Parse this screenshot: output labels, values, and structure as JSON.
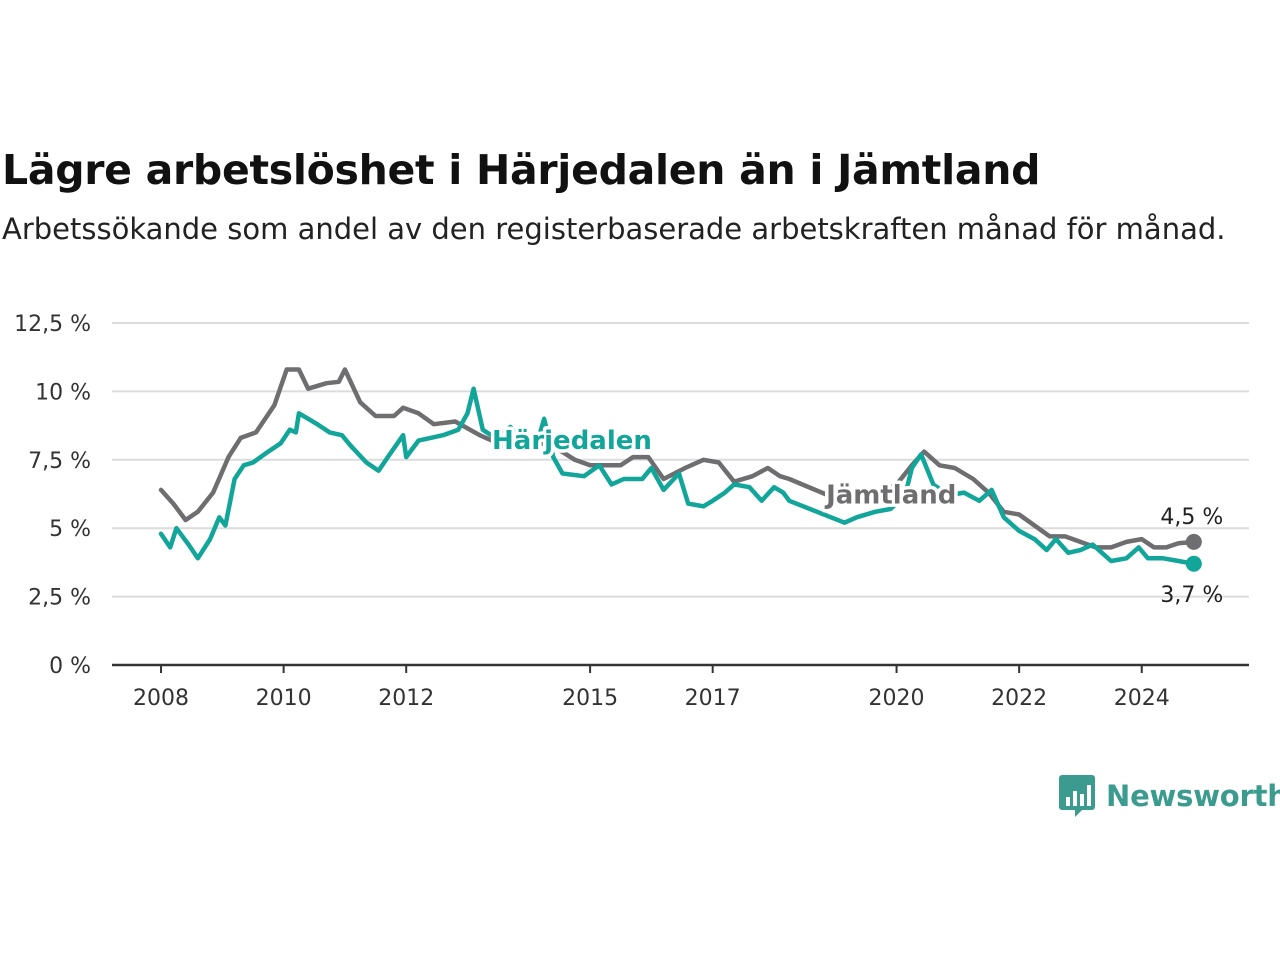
{
  "title": "Lägre arbetslöshet i Härjedalen än i Jämtland",
  "subtitle": "Arbetssökande som andel av den registerbaserade arbetskraften månad för månad.",
  "brand": {
    "name": "Newsworthy",
    "color": "#3a9b8e",
    "icon": "newsworthy-logo-icon"
  },
  "chart_data": {
    "type": "line",
    "title": "Lägre arbetslöshet i Härjedalen än i Jämtland",
    "subtitle": "Arbetssökande som andel av den registerbaserade arbetskraften månad för månad.",
    "x_ticks": [
      2008,
      2010,
      2012,
      2015,
      2017,
      2020,
      2022,
      2024
    ],
    "x_tick_labels": [
      "2008",
      "2010",
      "2012",
      "2015",
      "2017",
      "2020",
      "2022",
      "2024"
    ],
    "y_ticks": [
      0,
      2.5,
      5,
      7.5,
      10,
      12.5
    ],
    "y_tick_labels": [
      "0 %",
      "2,5 %",
      "5 %",
      "7,5 %",
      "10 %",
      "12,5 %"
    ],
    "xlim": [
      2007.2,
      2025.75
    ],
    "ylim": [
      0,
      12.5
    ],
    "grid": true,
    "legend": "inline labels",
    "series": [
      {
        "name": "Jämtland",
        "color": "#6e6e70",
        "end_label": "4,5 %",
        "points": [
          [
            2008.0,
            6.4
          ],
          [
            2008.2,
            5.9
          ],
          [
            2008.4,
            5.3
          ],
          [
            2008.6,
            5.6
          ],
          [
            2008.85,
            6.3
          ],
          [
            2009.1,
            7.6
          ],
          [
            2009.3,
            8.3
          ],
          [
            2009.55,
            8.5
          ],
          [
            2009.85,
            9.5
          ],
          [
            2010.05,
            10.8
          ],
          [
            2010.25,
            10.8
          ],
          [
            2010.4,
            10.1
          ],
          [
            2010.7,
            10.3
          ],
          [
            2010.9,
            10.35
          ],
          [
            2011.0,
            10.8
          ],
          [
            2011.25,
            9.6
          ],
          [
            2011.5,
            9.1
          ],
          [
            2011.8,
            9.1
          ],
          [
            2011.95,
            9.4
          ],
          [
            2012.2,
            9.2
          ],
          [
            2012.45,
            8.8
          ],
          [
            2012.8,
            8.9
          ],
          [
            2013.2,
            8.4
          ],
          [
            2013.6,
            8.0
          ],
          [
            2014.0,
            8.2
          ],
          [
            2014.4,
            8.0
          ],
          [
            2014.75,
            7.5
          ],
          [
            2015.0,
            7.3
          ],
          [
            2015.5,
            7.3
          ],
          [
            2015.7,
            7.6
          ],
          [
            2015.95,
            7.6
          ],
          [
            2016.2,
            6.8
          ],
          [
            2016.55,
            7.2
          ],
          [
            2016.85,
            7.5
          ],
          [
            2017.1,
            7.4
          ],
          [
            2017.35,
            6.7
          ],
          [
            2017.65,
            6.9
          ],
          [
            2017.9,
            7.2
          ],
          [
            2018.1,
            6.9
          ],
          [
            2018.25,
            6.8
          ],
          [
            2019.1,
            6.0
          ],
          [
            2019.6,
            6.2
          ],
          [
            2020.0,
            6.6
          ],
          [
            2020.25,
            7.3
          ],
          [
            2020.45,
            7.8
          ],
          [
            2020.7,
            7.3
          ],
          [
            2020.95,
            7.2
          ],
          [
            2021.25,
            6.8
          ],
          [
            2021.5,
            6.3
          ],
          [
            2021.75,
            5.6
          ],
          [
            2022.0,
            5.5
          ],
          [
            2022.25,
            5.1
          ],
          [
            2022.5,
            4.7
          ],
          [
            2022.75,
            4.7
          ],
          [
            2023.0,
            4.5
          ],
          [
            2023.25,
            4.3
          ],
          [
            2023.5,
            4.3
          ],
          [
            2023.75,
            4.5
          ],
          [
            2024.0,
            4.6
          ],
          [
            2024.2,
            4.3
          ],
          [
            2024.4,
            4.3
          ],
          [
            2024.6,
            4.45
          ],
          [
            2024.85,
            4.5
          ]
        ]
      },
      {
        "name": "Härjedalen",
        "color": "#12a59a",
        "end_label": "3,7 %",
        "points": [
          [
            2008.0,
            4.8
          ],
          [
            2008.15,
            4.3
          ],
          [
            2008.25,
            5.0
          ],
          [
            2008.45,
            4.4
          ],
          [
            2008.6,
            3.9
          ],
          [
            2008.8,
            4.6
          ],
          [
            2008.95,
            5.4
          ],
          [
            2009.05,
            5.1
          ],
          [
            2009.2,
            6.8
          ],
          [
            2009.35,
            7.3
          ],
          [
            2009.5,
            7.4
          ],
          [
            2009.75,
            7.8
          ],
          [
            2009.95,
            8.1
          ],
          [
            2010.1,
            8.6
          ],
          [
            2010.2,
            8.5
          ],
          [
            2010.25,
            9.2
          ],
          [
            2010.55,
            8.8
          ],
          [
            2010.75,
            8.5
          ],
          [
            2010.95,
            8.4
          ],
          [
            2011.1,
            8.0
          ],
          [
            2011.35,
            7.4
          ],
          [
            2011.55,
            7.1
          ],
          [
            2011.7,
            7.6
          ],
          [
            2011.95,
            8.4
          ],
          [
            2012.0,
            7.6
          ],
          [
            2012.2,
            8.2
          ],
          [
            2012.6,
            8.4
          ],
          [
            2012.85,
            8.6
          ],
          [
            2013.0,
            9.2
          ],
          [
            2013.1,
            10.1
          ],
          [
            2013.25,
            8.6
          ],
          [
            2013.45,
            8.3
          ],
          [
            2013.7,
            8.7
          ],
          [
            2014.0,
            7.9
          ],
          [
            2014.15,
            8.2
          ],
          [
            2014.25,
            9.0
          ],
          [
            2014.4,
            7.6
          ],
          [
            2014.55,
            7.0
          ],
          [
            2014.9,
            6.9
          ],
          [
            2015.15,
            7.3
          ],
          [
            2015.35,
            6.6
          ],
          [
            2015.55,
            6.8
          ],
          [
            2015.85,
            6.8
          ],
          [
            2016.0,
            7.2
          ],
          [
            2016.2,
            6.4
          ],
          [
            2016.45,
            7.0
          ],
          [
            2016.6,
            5.9
          ],
          [
            2016.85,
            5.8
          ],
          [
            2017.0,
            6.0
          ],
          [
            2017.2,
            6.3
          ],
          [
            2017.35,
            6.6
          ],
          [
            2017.6,
            6.5
          ],
          [
            2017.8,
            6.0
          ],
          [
            2018.0,
            6.5
          ],
          [
            2018.15,
            6.3
          ],
          [
            2018.25,
            6.0
          ],
          [
            2019.15,
            5.2
          ],
          [
            2019.35,
            5.4
          ],
          [
            2019.65,
            5.6
          ],
          [
            2019.9,
            5.7
          ],
          [
            2020.0,
            5.9
          ],
          [
            2020.15,
            6.3
          ],
          [
            2020.25,
            7.2
          ],
          [
            2020.4,
            7.7
          ],
          [
            2020.6,
            6.6
          ],
          [
            2020.85,
            6.2
          ],
          [
            2021.1,
            6.3
          ],
          [
            2021.35,
            6.0
          ],
          [
            2021.55,
            6.4
          ],
          [
            2021.75,
            5.4
          ],
          [
            2022.0,
            4.9
          ],
          [
            2022.25,
            4.6
          ],
          [
            2022.45,
            4.2
          ],
          [
            2022.6,
            4.6
          ],
          [
            2022.8,
            4.1
          ],
          [
            2023.0,
            4.2
          ],
          [
            2023.2,
            4.4
          ],
          [
            2023.35,
            4.1
          ],
          [
            2023.5,
            3.8
          ],
          [
            2023.75,
            3.9
          ],
          [
            2023.95,
            4.3
          ],
          [
            2024.1,
            3.9
          ],
          [
            2024.35,
            3.9
          ],
          [
            2024.6,
            3.8
          ],
          [
            2024.85,
            3.7
          ]
        ]
      }
    ],
    "inline_labels": [
      {
        "series": "Härjedalen",
        "text": "Härjedalen",
        "x": 2013.4,
        "y": 7.9
      },
      {
        "series": "Jämtland",
        "text": "Jämtland",
        "x": 2018.85,
        "y": 5.9
      }
    ]
  }
}
